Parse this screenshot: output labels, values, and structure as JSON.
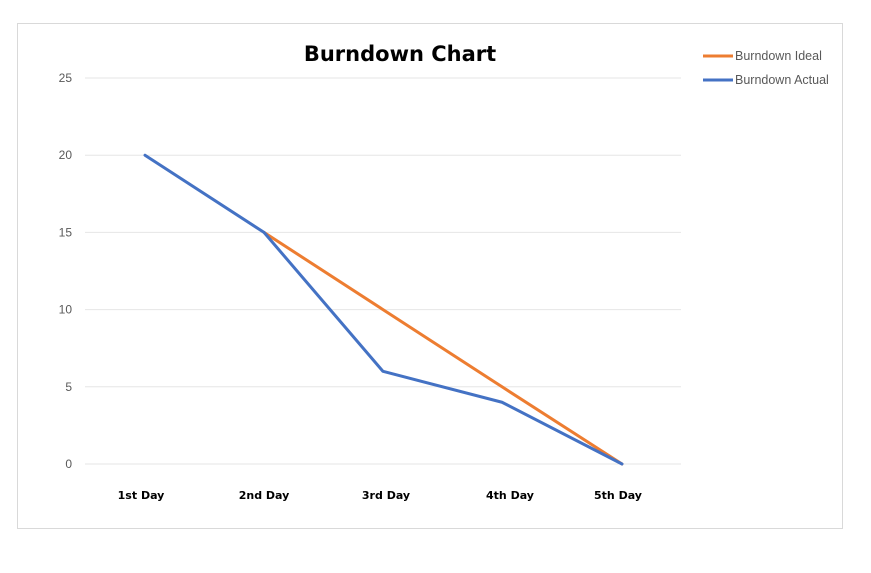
{
  "chart_data": {
    "type": "line",
    "title": "Burndown Chart",
    "xlabel": "",
    "ylabel": "",
    "categories": [
      "1st Day",
      "2nd Day",
      "3rd Day",
      "4th Day",
      "5th Day"
    ],
    "ylim": [
      0,
      25
    ],
    "yticks": [
      0,
      5,
      10,
      15,
      20,
      25
    ],
    "grid": true,
    "legend_position": "top-right",
    "series": [
      {
        "name": "Burndown Ideal",
        "color": "#ED7D31",
        "values": [
          null,
          15,
          10,
          5,
          0
        ]
      },
      {
        "name": "Burndown Actual",
        "color": "#4472C4",
        "values": [
          20,
          15,
          6,
          4,
          0
        ]
      }
    ]
  }
}
